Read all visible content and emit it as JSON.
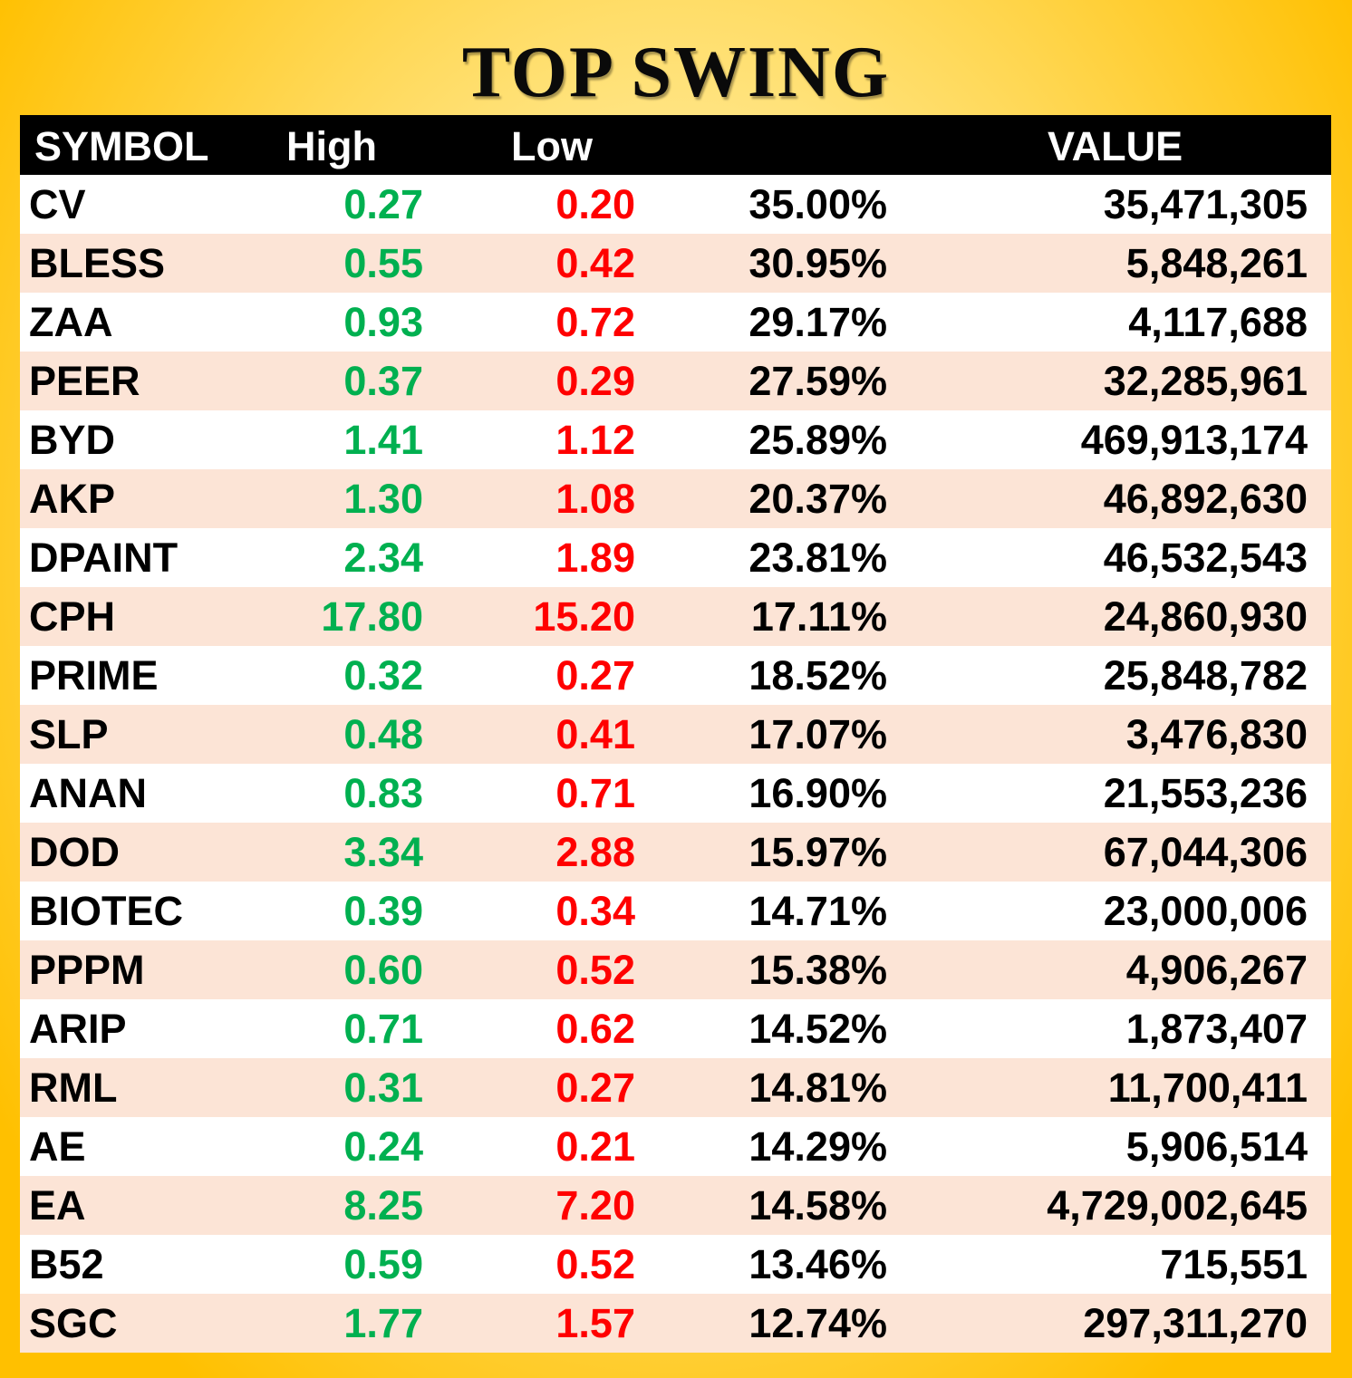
{
  "title": "TOP SWING",
  "colors": {
    "background": "#ffc000",
    "header_bg": "#000000",
    "high": "#00b050",
    "low": "#ff0000",
    "row_alt": "#fce4d6"
  },
  "headers": {
    "symbol": "SYMBOL",
    "high": "High",
    "low": "Low",
    "pct": "",
    "value": "VALUE"
  },
  "rows": [
    {
      "symbol": "CV",
      "high": "0.27",
      "low": "0.20",
      "pct": "35.00%",
      "value": "35,471,305"
    },
    {
      "symbol": "BLESS",
      "high": "0.55",
      "low": "0.42",
      "pct": "30.95%",
      "value": "5,848,261"
    },
    {
      "symbol": "ZAA",
      "high": "0.93",
      "low": "0.72",
      "pct": "29.17%",
      "value": "4,117,688"
    },
    {
      "symbol": "PEER",
      "high": "0.37",
      "low": "0.29",
      "pct": "27.59%",
      "value": "32,285,961"
    },
    {
      "symbol": "BYD",
      "high": "1.41",
      "low": "1.12",
      "pct": "25.89%",
      "value": "469,913,174"
    },
    {
      "symbol": "AKP",
      "high": "1.30",
      "low": "1.08",
      "pct": "20.37%",
      "value": "46,892,630"
    },
    {
      "symbol": "DPAINT",
      "high": "2.34",
      "low": "1.89",
      "pct": "23.81%",
      "value": "46,532,543"
    },
    {
      "symbol": "CPH",
      "high": "17.80",
      "low": "15.20",
      "pct": "17.11%",
      "value": "24,860,930"
    },
    {
      "symbol": "PRIME",
      "high": "0.32",
      "low": "0.27",
      "pct": "18.52%",
      "value": "25,848,782"
    },
    {
      "symbol": "SLP",
      "high": "0.48",
      "low": "0.41",
      "pct": "17.07%",
      "value": "3,476,830"
    },
    {
      "symbol": "ANAN",
      "high": "0.83",
      "low": "0.71",
      "pct": "16.90%",
      "value": "21,553,236"
    },
    {
      "symbol": "DOD",
      "high": "3.34",
      "low": "2.88",
      "pct": "15.97%",
      "value": "67,044,306"
    },
    {
      "symbol": "BIOTEC",
      "high": "0.39",
      "low": "0.34",
      "pct": "14.71%",
      "value": "23,000,006"
    },
    {
      "symbol": "PPPM",
      "high": "0.60",
      "low": "0.52",
      "pct": "15.38%",
      "value": "4,906,267"
    },
    {
      "symbol": "ARIP",
      "high": "0.71",
      "low": "0.62",
      "pct": "14.52%",
      "value": "1,873,407"
    },
    {
      "symbol": "RML",
      "high": "0.31",
      "low": "0.27",
      "pct": "14.81%",
      "value": "11,700,411"
    },
    {
      "symbol": "AE",
      "high": "0.24",
      "low": "0.21",
      "pct": "14.29%",
      "value": "5,906,514"
    },
    {
      "symbol": "EA",
      "high": "8.25",
      "low": "7.20",
      "pct": "14.58%",
      "value": "4,729,002,645"
    },
    {
      "symbol": "B52",
      "high": "0.59",
      "low": "0.52",
      "pct": "13.46%",
      "value": "715,551"
    },
    {
      "symbol": "SGC",
      "high": "1.77",
      "low": "1.57",
      "pct": "12.74%",
      "value": "297,311,270"
    }
  ]
}
